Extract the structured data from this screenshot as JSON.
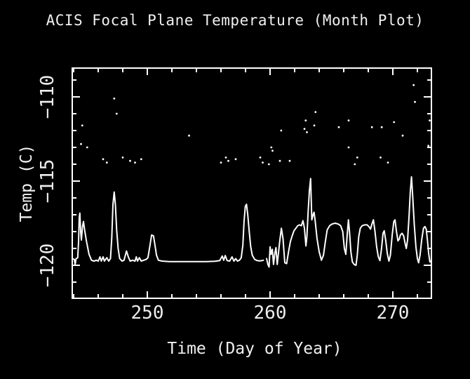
{
  "window": {
    "background_color": "#000000",
    "foreground_color": "#ffffff"
  },
  "chart_data": {
    "type": "line",
    "title": "ACIS Focal Plane Temperature (Month Plot)",
    "xlabel": "Time (Day of Year)",
    "ylabel": "Temp (C)",
    "grid": false,
    "legend": null,
    "x_axis": {
      "min": 243.885,
      "max": 273.143,
      "major_ticks": [
        250,
        260,
        270
      ],
      "minor_tick_start": 244,
      "minor_tick_step": 2
    },
    "y_axis": {
      "min": -121.96,
      "max": -108.29,
      "major_ticks": [
        -120,
        -115,
        -110
      ],
      "minor_tick_start": -121,
      "minor_tick_step": 1
    },
    "series": [
      {
        "name": "focal-plane-temperature-trace",
        "style": "line",
        "color": "#ffffff",
        "segments": [
          [
            [
              243.9,
              -119.6
            ],
            [
              244.05,
              -119.65
            ],
            [
              244.12,
              -119.95
            ],
            [
              244.2,
              -119.6
            ],
            [
              244.33,
              -119.55
            ],
            [
              244.4,
              -118.6
            ],
            [
              244.45,
              -117.2
            ],
            [
              244.5,
              -116.9
            ],
            [
              244.57,
              -118.0
            ],
            [
              244.63,
              -118.5
            ],
            [
              244.72,
              -117.7
            ],
            [
              244.8,
              -117.4
            ],
            [
              244.9,
              -117.95
            ],
            [
              245.05,
              -118.6
            ],
            [
              245.25,
              -119.35
            ],
            [
              245.45,
              -119.7
            ],
            [
              245.65,
              -119.75
            ],
            [
              245.85,
              -119.7
            ],
            [
              246.0,
              -119.75
            ],
            [
              246.15,
              -119.5
            ],
            [
              246.25,
              -119.75
            ],
            [
              246.4,
              -119.5
            ],
            [
              246.5,
              -119.75
            ],
            [
              246.7,
              -119.55
            ],
            [
              246.85,
              -119.75
            ],
            [
              247.0,
              -119.6
            ],
            [
              247.1,
              -118.4
            ],
            [
              247.2,
              -116.4
            ],
            [
              247.3,
              -115.65
            ],
            [
              247.4,
              -116.4
            ],
            [
              247.5,
              -117.9
            ],
            [
              247.62,
              -119.0
            ],
            [
              247.75,
              -119.6
            ],
            [
              247.95,
              -119.75
            ],
            [
              248.1,
              -119.7
            ],
            [
              248.3,
              -119.15
            ],
            [
              248.45,
              -119.5
            ],
            [
              248.6,
              -119.75
            ],
            [
              248.8,
              -119.7
            ],
            [
              249.0,
              -119.75
            ],
            [
              249.1,
              -119.5
            ],
            [
              249.2,
              -119.75
            ],
            [
              249.35,
              -119.55
            ],
            [
              249.5,
              -119.75
            ],
            [
              249.7,
              -119.7
            ],
            [
              249.9,
              -119.65
            ],
            [
              250.05,
              -119.55
            ],
            [
              250.2,
              -118.9
            ],
            [
              250.35,
              -118.2
            ],
            [
              250.5,
              -118.25
            ],
            [
              250.62,
              -118.8
            ],
            [
              250.75,
              -119.4
            ],
            [
              250.9,
              -119.7
            ],
            [
              251.2,
              -119.75
            ],
            [
              251.8,
              -119.78
            ],
            [
              252.5,
              -119.78
            ],
            [
              253.2,
              -119.78
            ],
            [
              254.0,
              -119.78
            ],
            [
              254.8,
              -119.78
            ],
            [
              255.5,
              -119.76
            ],
            [
              255.9,
              -119.72
            ],
            [
              256.1,
              -119.45
            ],
            [
              256.22,
              -119.7
            ],
            [
              256.35,
              -119.42
            ],
            [
              256.5,
              -119.72
            ],
            [
              256.7,
              -119.75
            ],
            [
              256.9,
              -119.5
            ],
            [
              257.05,
              -119.75
            ],
            [
              257.2,
              -119.6
            ],
            [
              257.35,
              -119.75
            ],
            [
              257.5,
              -119.7
            ],
            [
              257.65,
              -119.55
            ],
            [
              257.78,
              -118.8
            ],
            [
              257.88,
              -117.4
            ],
            [
              257.98,
              -116.5
            ],
            [
              258.08,
              -116.38
            ],
            [
              258.18,
              -117.0
            ],
            [
              258.3,
              -118.0
            ],
            [
              258.42,
              -118.9
            ],
            [
              258.55,
              -119.4
            ],
            [
              258.75,
              -119.65
            ],
            [
              258.95,
              -119.72
            ],
            [
              259.15,
              -119.74
            ],
            [
              259.35,
              -119.72
            ],
            [
              259.45,
              -119.7
            ]
          ],
          [
            [
              259.72,
              -119.6
            ],
            [
              259.82,
              -119.95
            ],
            [
              259.92,
              -120.1
            ],
            [
              260.0,
              -118.9
            ],
            [
              260.08,
              -119.35
            ],
            [
              260.18,
              -119.05
            ],
            [
              260.28,
              -119.95
            ],
            [
              260.38,
              -119.3
            ],
            [
              260.48,
              -118.95
            ],
            [
              260.58,
              -119.95
            ],
            [
              260.68,
              -119.3
            ],
            [
              260.78,
              -118.6
            ],
            [
              260.92,
              -117.8
            ],
            [
              261.05,
              -118.4
            ],
            [
              261.2,
              -119.85
            ],
            [
              261.35,
              -119.9
            ],
            [
              261.5,
              -119.2
            ],
            [
              261.65,
              -118.6
            ],
            [
              261.8,
              -118.25
            ],
            [
              261.95,
              -117.95
            ],
            [
              262.1,
              -117.8
            ],
            [
              262.25,
              -117.65
            ],
            [
              262.4,
              -117.6
            ],
            [
              262.55,
              -117.65
            ],
            [
              262.68,
              -117.35
            ],
            [
              262.8,
              -117.8
            ],
            [
              262.92,
              -118.85
            ],
            [
              263.0,
              -118.3
            ],
            [
              263.1,
              -116.8
            ],
            [
              263.2,
              -115.6
            ],
            [
              263.3,
              -114.85
            ],
            [
              263.4,
              -117.3
            ],
            [
              263.5,
              -117.0
            ],
            [
              263.58,
              -116.85
            ],
            [
              263.68,
              -117.4
            ],
            [
              263.82,
              -118.4
            ],
            [
              264.0,
              -119.2
            ],
            [
              264.18,
              -119.7
            ],
            [
              264.35,
              -119.4
            ],
            [
              264.5,
              -118.6
            ],
            [
              264.65,
              -117.9
            ],
            [
              264.85,
              -117.65
            ],
            [
              265.05,
              -117.55
            ],
            [
              265.3,
              -117.5
            ],
            [
              265.55,
              -117.55
            ],
            [
              265.75,
              -117.65
            ],
            [
              265.92,
              -118.0
            ],
            [
              266.05,
              -119.0
            ],
            [
              266.17,
              -119.35
            ],
            [
              266.28,
              -118.2
            ],
            [
              266.38,
              -117.3
            ],
            [
              266.48,
              -118.1
            ],
            [
              266.58,
              -119.2
            ],
            [
              266.7,
              -119.8
            ],
            [
              266.85,
              -119.95
            ],
            [
              267.0,
              -120.0
            ],
            [
              267.1,
              -119.4
            ],
            [
              267.22,
              -118.3
            ],
            [
              267.35,
              -117.8
            ],
            [
              267.5,
              -117.65
            ],
            [
              267.7,
              -117.6
            ],
            [
              267.9,
              -117.6
            ],
            [
              268.05,
              -117.7
            ],
            [
              268.18,
              -117.85
            ],
            [
              268.3,
              -117.55
            ],
            [
              268.42,
              -117.3
            ],
            [
              268.55,
              -118.0
            ],
            [
              268.68,
              -118.9
            ],
            [
              268.82,
              -119.5
            ],
            [
              268.95,
              -119.72
            ],
            [
              269.08,
              -119.0
            ],
            [
              269.2,
              -118.1
            ],
            [
              269.3,
              -117.95
            ],
            [
              269.42,
              -118.5
            ],
            [
              269.55,
              -119.3
            ],
            [
              269.68,
              -119.75
            ],
            [
              269.8,
              -119.4
            ],
            [
              269.95,
              -118.2
            ],
            [
              270.08,
              -117.4
            ],
            [
              270.18,
              -117.3
            ],
            [
              270.3,
              -118.0
            ],
            [
              270.42,
              -118.55
            ],
            [
              270.52,
              -118.45
            ],
            [
              270.62,
              -118.2
            ],
            [
              270.75,
              -118.1
            ],
            [
              270.88,
              -118.25
            ],
            [
              271.0,
              -118.7
            ],
            [
              271.1,
              -119.0
            ],
            [
              271.2,
              -118.5
            ],
            [
              271.32,
              -117.1
            ],
            [
              271.42,
              -115.7
            ],
            [
              271.52,
              -114.75
            ],
            [
              271.62,
              -115.9
            ],
            [
              271.75,
              -117.6
            ],
            [
              271.88,
              -118.9
            ],
            [
              272.0,
              -119.6
            ],
            [
              272.1,
              -119.85
            ],
            [
              272.22,
              -119.4
            ],
            [
              272.35,
              -118.5
            ],
            [
              272.5,
              -117.8
            ],
            [
              272.62,
              -117.7
            ],
            [
              272.72,
              -117.85
            ],
            [
              272.82,
              -118.5
            ],
            [
              272.92,
              -119.3
            ],
            [
              273.02,
              -119.8
            ],
            [
              273.12,
              -119.75
            ]
          ]
        ]
      },
      {
        "name": "warm-pixel-scatter",
        "style": "points",
        "color": "#ffffff",
        "points": [
          [
            244.6,
            -112.8
          ],
          [
            244.7,
            -111.7
          ],
          [
            245.1,
            -113.0
          ],
          [
            246.4,
            -113.7
          ],
          [
            246.7,
            -113.9
          ],
          [
            247.3,
            -110.1
          ],
          [
            247.5,
            -111.0
          ],
          [
            248.0,
            -113.6
          ],
          [
            248.6,
            -113.8
          ],
          [
            249.0,
            -113.9
          ],
          [
            249.5,
            -113.7
          ],
          [
            253.4,
            -112.3
          ],
          [
            256.0,
            -113.9
          ],
          [
            256.4,
            -113.6
          ],
          [
            256.6,
            -113.8
          ],
          [
            257.2,
            -113.7
          ],
          [
            259.2,
            -113.6
          ],
          [
            259.4,
            -113.9
          ],
          [
            259.9,
            -114.0
          ],
          [
            260.1,
            -113.0
          ],
          [
            260.2,
            -113.2
          ],
          [
            260.8,
            -113.8
          ],
          [
            260.9,
            -112.0
          ],
          [
            261.6,
            -113.8
          ],
          [
            262.8,
            -111.9
          ],
          [
            262.9,
            -111.4
          ],
          [
            263.0,
            -112.1
          ],
          [
            263.6,
            -111.7
          ],
          [
            263.7,
            -110.9
          ],
          [
            265.6,
            -111.8
          ],
          [
            266.4,
            -111.4
          ],
          [
            266.4,
            -113.0
          ],
          [
            266.9,
            -114.0
          ],
          [
            267.1,
            -113.6
          ],
          [
            268.3,
            -111.8
          ],
          [
            269.0,
            -113.6
          ],
          [
            269.1,
            -111.8
          ],
          [
            269.6,
            -113.9
          ],
          [
            270.1,
            -111.5
          ],
          [
            270.8,
            -112.3
          ],
          [
            271.7,
            -109.3
          ],
          [
            271.8,
            -110.3
          ],
          [
            272.9,
            -112.9
          ],
          [
            273.0,
            -111.4
          ]
        ]
      }
    ]
  }
}
